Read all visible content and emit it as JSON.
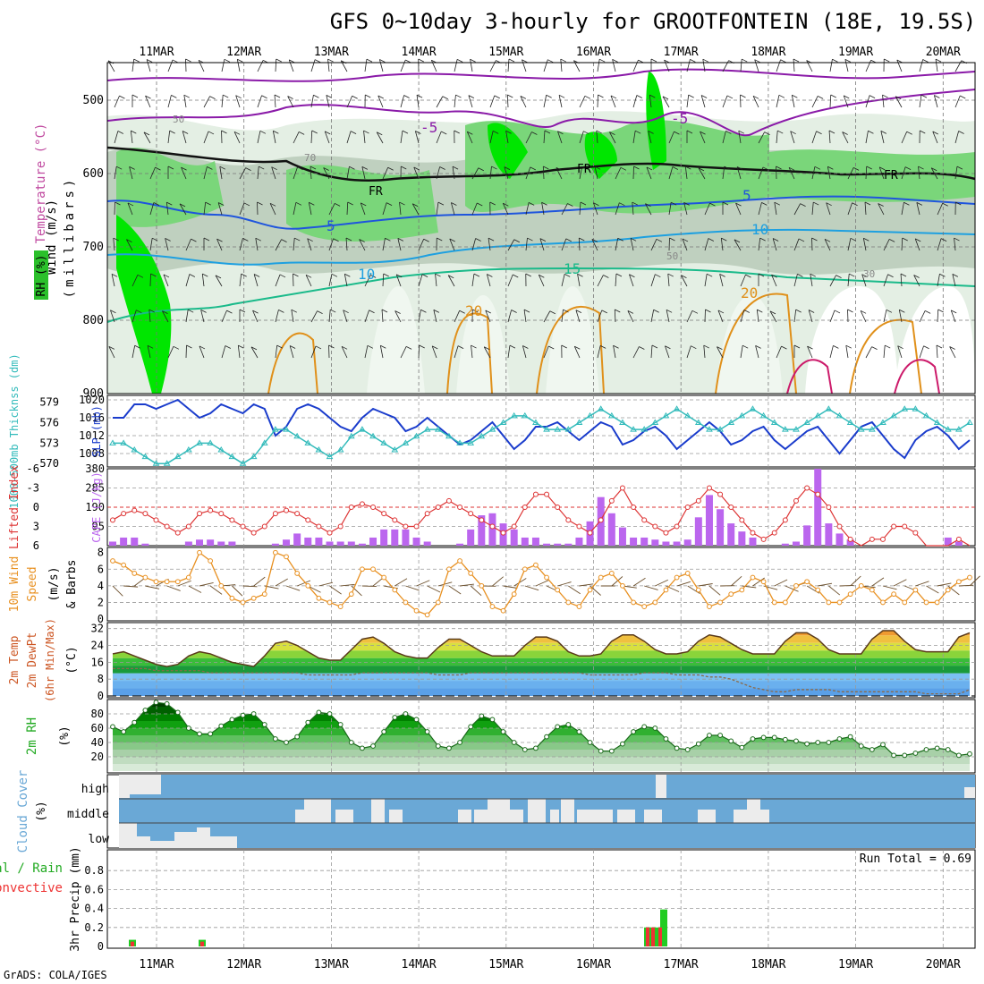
{
  "header": {
    "title": "GFS 0~10day 3-hourly for GROOTFONTEIN (18E, 19.5S)",
    "credit": "GrADS: COLA/IGES"
  },
  "colors": {
    "rh_light": "#d9e8d9",
    "rh_mid": "#b8ccb8",
    "rh_green": "#7ad67a",
    "rh_bright": "#00e600",
    "slp": "#1a3ccc",
    "thickness": "#33bbbb",
    "lifted": "#dd3333",
    "cape": "#bb66ee",
    "wind": "#e89020",
    "temp_fill": "#f0c040",
    "dewpt_fill": "#7fb8f0",
    "rh2m": "#22aa22",
    "cloud": "#6aa8d6",
    "rain": "#22cc22",
    "conv": "#ee3333"
  },
  "dates": [
    "11MAR",
    "12MAR",
    "13MAR",
    "14MAR",
    "15MAR",
    "16MAR",
    "17MAR",
    "18MAR",
    "19MAR",
    "20MAR"
  ],
  "panels": {
    "upper": {
      "label_rh": "RH (%)",
      "label_temp": "Temperature (°C)",
      "label_wind": "Wind (m/s)",
      "label_mb": "(millibars)",
      "levels": [
        "500",
        "600",
        "700",
        "800",
        "900"
      ],
      "contour_labels": [
        "-5",
        "-5",
        "5",
        "5",
        "10",
        "10",
        "15",
        "20",
        "20",
        "FR",
        "FR",
        "FR",
        "50",
        "50",
        "30",
        "70"
      ]
    },
    "slp": {
      "label_thick": "1000-500mb Thicknss (dm)",
      "label_slp": "SLP (mb)",
      "thick_ticks": [
        "579",
        "576",
        "573",
        "570"
      ],
      "slp_ticks": [
        "1020",
        "1016",
        "1012",
        "1008"
      ]
    },
    "cape": {
      "label_li": "Lifted Index",
      "label_cape": "CAPE (J/kg)",
      "li_ticks": [
        "-6",
        "-3",
        "0",
        "3",
        "6"
      ],
      "cape_ticks": [
        "380",
        "285",
        "190",
        "95"
      ]
    },
    "wind10": {
      "label_a": "10m Wind",
      "label_b": "Speed",
      "label_c": "& Barbs",
      "label_unit": "(m/s)",
      "ticks": [
        "8",
        "6",
        "4",
        "2",
        "0"
      ]
    },
    "temp2m": {
      "label_a": "2m Temp",
      "label_b": "2m DewPt",
      "label_c": "(6hr Min/Max)",
      "label_unit": "(°C)",
      "ticks": [
        "32",
        "24",
        "16",
        "8",
        "0"
      ]
    },
    "rh2m": {
      "label": "2m RH",
      "unit": "(%)",
      "ticks": [
        "80",
        "60",
        "40",
        "20"
      ]
    },
    "cloud": {
      "label": "Cloud Cover",
      "unit": "(%)",
      "levels": [
        "high",
        "middle",
        "low"
      ]
    },
    "precip": {
      "label_a": "Total / Rain",
      "label_b": "Convective",
      "label_c": "3hr Precip (mm)",
      "run_total": "Run Total = 0.69",
      "ticks": [
        "0.8",
        "0.6",
        "0.4",
        "0.2",
        "0"
      ]
    }
  },
  "chart_data": [
    {
      "type": "line",
      "title": "1000-500mb Thickness and SLP",
      "xlabel": "",
      "ylabel": "SLP (mb)",
      "ylim": [
        1005,
        1021
      ],
      "series": [
        {
          "name": "SLP (mb)",
          "values": [
            1016,
            1016,
            1019,
            1019,
            1018,
            1019,
            1020,
            1018,
            1016,
            1017,
            1019,
            1018,
            1017,
            1019,
            1018,
            1012,
            1014,
            1018,
            1019,
            1018,
            1016,
            1014,
            1013,
            1016,
            1018,
            1017,
            1016,
            1013,
            1014,
            1016,
            1014,
            1012,
            1010,
            1011,
            1013,
            1015,
            1012,
            1009,
            1011,
            1014,
            1014,
            1015,
            1013,
            1011,
            1013,
            1015,
            1014,
            1010,
            1011,
            1013,
            1014,
            1012,
            1009,
            1011,
            1013,
            1015,
            1013,
            1010,
            1011,
            1013,
            1014,
            1011,
            1009,
            1011,
            1013,
            1014,
            1011,
            1008,
            1011,
            1014,
            1015,
            1012,
            1009,
            1007,
            1011,
            1013,
            1014,
            1012,
            1009,
            1011
          ]
        },
        {
          "name": "Thickness (dm)",
          "values": [
            573,
            573,
            572,
            571,
            570,
            570,
            571,
            572,
            573,
            573,
            572,
            571,
            570,
            571,
            573,
            575,
            575,
            574,
            573,
            572,
            571,
            572,
            574,
            575,
            574,
            573,
            572,
            573,
            574,
            575,
            575,
            574,
            573,
            573,
            574,
            575,
            576,
            577,
            577,
            576,
            575,
            575,
            575,
            576,
            577,
            578,
            577,
            576,
            575,
            575,
            576,
            577,
            578,
            577,
            576,
            575,
            575,
            576,
            577,
            578,
            577,
            576,
            575,
            575,
            576,
            577,
            578,
            577,
            576,
            575,
            575,
            576,
            577,
            578,
            578,
            577,
            576,
            575,
            575,
            576
          ]
        }
      ]
    },
    {
      "type": "bar",
      "title": "CAPE (J/kg) and Lifted Index",
      "xlabel": "",
      "ylabel": "CAPE (J/kg)",
      "ylim": [
        0,
        380
      ],
      "series": [
        {
          "name": "CAPE (J/kg)",
          "values": [
            20,
            40,
            40,
            10,
            0,
            0,
            0,
            20,
            30,
            30,
            20,
            20,
            0,
            0,
            0,
            10,
            30,
            60,
            40,
            40,
            20,
            20,
            20,
            10,
            40,
            80,
            80,
            80,
            40,
            20,
            0,
            0,
            10,
            80,
            150,
            160,
            110,
            80,
            40,
            40,
            10,
            10,
            10,
            40,
            120,
            240,
            160,
            90,
            40,
            40,
            30,
            20,
            20,
            30,
            140,
            250,
            180,
            110,
            70,
            40,
            0,
            0,
            10,
            20,
            100,
            380,
            110,
            60,
            30,
            0,
            0,
            0,
            0,
            0,
            0,
            0,
            0,
            40,
            20,
            0
          ]
        },
        {
          "name": "Lifted Index",
          "values": [
            2,
            1,
            0.5,
            1,
            2,
            3,
            4,
            3,
            1,
            0.5,
            1,
            2,
            3,
            4,
            3,
            1,
            0.5,
            1,
            2,
            3,
            4,
            3,
            0,
            -0.5,
            0,
            1,
            2,
            3,
            3,
            1,
            0,
            -1,
            0,
            1,
            2,
            3,
            4,
            3,
            0,
            -2,
            -2,
            0,
            2,
            3,
            4,
            2,
            -1,
            -3,
            0,
            2,
            3,
            4,
            3,
            0,
            -1,
            -3,
            -2,
            0,
            2,
            4,
            5,
            4,
            2,
            -1,
            -3,
            -2,
            0,
            3,
            5,
            6,
            5,
            5,
            3,
            3,
            4,
            6,
            7,
            6,
            5,
            6
          ]
        }
      ]
    },
    {
      "type": "line",
      "title": "10m Wind Speed",
      "xlabel": "",
      "ylabel": "m/s",
      "ylim": [
        0,
        8
      ],
      "series": [
        {
          "name": "10m Wind Speed (m/s)",
          "values": [
            7,
            6.5,
            5.5,
            5,
            4.5,
            4.5,
            4.5,
            5,
            8,
            7,
            4,
            2.5,
            2,
            2.5,
            3,
            8,
            7.5,
            5.5,
            4,
            2.5,
            2,
            1.5,
            3,
            6,
            6,
            5,
            3.5,
            2,
            1,
            0.5,
            2,
            6,
            7,
            5.5,
            4,
            1.5,
            1,
            3,
            6,
            6.5,
            5,
            3.5,
            2,
            1.5,
            3.5,
            5,
            5.5,
            4,
            2,
            1.5,
            2,
            3.5,
            5,
            5.5,
            3.5,
            1.5,
            2,
            3,
            3.5,
            5,
            4.5,
            2,
            2,
            4,
            4.5,
            3.5,
            2,
            2,
            3,
            4,
            3.5,
            2,
            3,
            2,
            3.5,
            2,
            2,
            3.5,
            4.5,
            5
          ]
        }
      ]
    },
    {
      "type": "area",
      "title": "2m Temp and DewPt",
      "xlabel": "",
      "ylabel": "°C",
      "ylim": [
        0,
        32
      ],
      "series": [
        {
          "name": "2m Temp (°C)",
          "values": [
            20,
            21,
            19,
            17,
            15,
            14,
            15,
            19,
            21,
            20,
            18,
            16,
            15,
            14,
            19,
            25,
            26,
            24,
            21,
            18,
            17,
            17,
            22,
            27,
            28,
            25,
            21,
            19,
            18,
            18,
            23,
            27,
            27,
            24,
            21,
            19,
            19,
            19,
            24,
            28,
            28,
            26,
            21,
            19,
            19,
            20,
            26,
            29,
            29,
            26,
            22,
            20,
            20,
            21,
            26,
            29,
            28,
            25,
            22,
            20,
            20,
            20,
            26,
            30,
            30,
            27,
            22,
            20,
            20,
            20,
            27,
            31,
            31,
            26,
            22,
            21,
            21,
            21,
            28,
            30
          ]
        },
        {
          "name": "2m DewPt (°C)",
          "values": [
            13,
            13,
            13,
            13,
            12,
            12,
            12,
            12,
            12,
            11,
            11,
            11,
            11,
            11,
            11,
            11,
            11,
            11,
            10,
            10,
            10,
            10,
            10,
            11,
            11,
            11,
            11,
            11,
            11,
            11,
            10,
            10,
            10,
            11,
            11,
            11,
            11,
            11,
            11,
            11,
            11,
            11,
            11,
            11,
            10,
            10,
            10,
            10,
            10,
            11,
            11,
            11,
            10,
            10,
            10,
            9,
            9,
            8,
            6,
            4,
            3,
            2,
            2,
            3,
            3,
            3,
            3,
            2,
            2,
            2,
            2,
            2,
            2,
            2,
            2,
            1,
            1,
            1,
            1,
            3
          ]
        }
      ]
    },
    {
      "type": "area",
      "title": "2m RH",
      "xlabel": "",
      "ylabel": "%",
      "ylim": [
        0,
        100
      ],
      "series": [
        {
          "name": "2m RH (%)",
          "values": [
            62,
            55,
            68,
            85,
            96,
            94,
            82,
            60,
            52,
            52,
            63,
            72,
            78,
            80,
            65,
            45,
            40,
            48,
            68,
            82,
            80,
            65,
            40,
            32,
            35,
            55,
            75,
            80,
            72,
            55,
            35,
            32,
            40,
            62,
            77,
            72,
            55,
            40,
            30,
            32,
            48,
            62,
            65,
            55,
            40,
            28,
            28,
            38,
            55,
            62,
            60,
            45,
            32,
            30,
            38,
            50,
            50,
            42,
            33,
            45,
            47,
            47,
            44,
            42,
            38,
            40,
            40,
            45,
            48,
            35,
            30,
            37,
            22,
            22,
            25,
            30,
            32,
            30,
            22,
            24
          ]
        }
      ]
    },
    {
      "type": "bar",
      "title": "3hr Precip",
      "xlabel": "",
      "ylabel": "mm",
      "ylim": [
        0,
        1
      ],
      "series": [
        {
          "name": "Total / Rain (mm)",
          "x": [
            "10.7",
            "11.5",
            "16.6",
            "16.65",
            "16.7",
            "16.75"
          ],
          "values": [
            0.07,
            0.07,
            0.2,
            0.2,
            0.2,
            0.39
          ]
        },
        {
          "name": "Convective (mm)",
          "x": [
            "10.7",
            "11.5",
            "16.6",
            "16.65",
            "16.7"
          ],
          "values": [
            0.05,
            0.05,
            0.2,
            0.2,
            0.2
          ]
        }
      ]
    }
  ]
}
